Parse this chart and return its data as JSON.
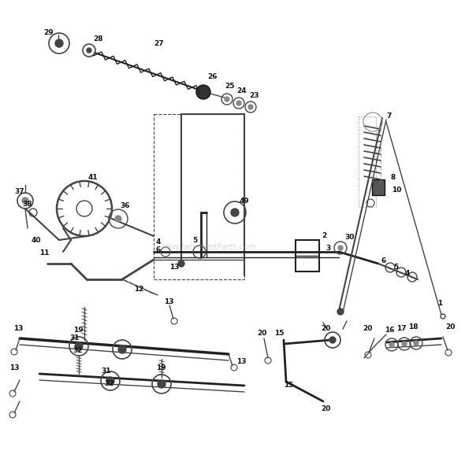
{
  "bg_color": "#ffffff",
  "watermark": "eReplacementParts.com",
  "fig_width": 5.9,
  "fig_height": 5.82,
  "dpi": 100
}
